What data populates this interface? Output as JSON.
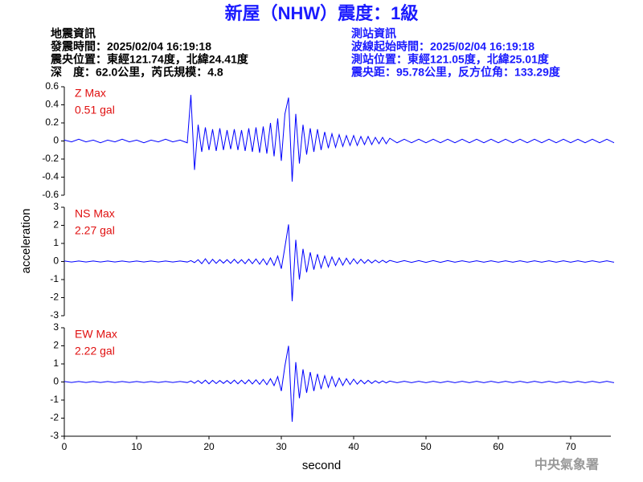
{
  "header": {
    "title": "新屋（NHW）震度：1級",
    "left": [
      "地震資訊",
      "發震時間：2025/02/04 16:19:18",
      "震央位置：東經121.74度，北緯24.41度",
      "深　度：62.0公里，芮氏規模：4.8"
    ],
    "right": [
      "測站資訊",
      "波線起始時間：2025/02/04 16:19:18",
      "測站位置：東經121.05度，北緯25.01度",
      "震央距：95.78公里，反方位角：133.29度"
    ]
  },
  "credit": "中央氣象署",
  "chart_data": {
    "type": "line",
    "xlabel": "second",
    "ylabel": "acceleration",
    "xlim": [
      0,
      76
    ],
    "xticks": [
      0,
      10,
      20,
      30,
      40,
      50,
      60,
      70
    ],
    "x": [
      0,
      1,
      2,
      3,
      4,
      5,
      6,
      7,
      8,
      9,
      10,
      11,
      12,
      13,
      14,
      15,
      16,
      17,
      17.5,
      18,
      18.5,
      19,
      19.5,
      20,
      20.5,
      21,
      21.5,
      22,
      22.5,
      23,
      23.5,
      24,
      24.5,
      25,
      25.5,
      26,
      26.5,
      27,
      27.5,
      28,
      28.5,
      29,
      29.5,
      30,
      30.5,
      31,
      31.5,
      32,
      32.5,
      33,
      33.5,
      34,
      34.5,
      35,
      35.5,
      36,
      36.5,
      37,
      37.5,
      38,
      38.5,
      39,
      39.5,
      40,
      40.5,
      41,
      41.5,
      42,
      42.5,
      43,
      43.5,
      44,
      44.5,
      45,
      46,
      47,
      48,
      49,
      50,
      51,
      52,
      53,
      54,
      55,
      56,
      57,
      58,
      59,
      60,
      61,
      62,
      63,
      64,
      65,
      66,
      67,
      68,
      69,
      70,
      71,
      72,
      73,
      74,
      75,
      76
    ],
    "panels": [
      {
        "name": "Z Max",
        "max_label": "0.51 gal",
        "color": "#0000ff",
        "ylim": [
          -0.6,
          0.6
        ],
        "yticks": [
          -0.6,
          -0.4,
          -0.2,
          0,
          0.2,
          0.4,
          0.6
        ],
        "values": [
          0.01,
          -0.01,
          0.02,
          -0.01,
          0.01,
          -0.02,
          0.01,
          -0.01,
          0.02,
          -0.01,
          0.01,
          -0.02,
          0.01,
          -0.01,
          0.02,
          -0.01,
          0.01,
          -0.02,
          0.51,
          -0.32,
          0.18,
          -0.12,
          0.15,
          -0.1,
          0.13,
          -0.11,
          0.14,
          -0.1,
          0.12,
          -0.09,
          0.13,
          -0.1,
          0.12,
          -0.11,
          0.14,
          -0.12,
          0.15,
          -0.13,
          0.16,
          -0.14,
          0.2,
          -0.17,
          0.25,
          -0.22,
          0.3,
          0.48,
          -0.45,
          0.3,
          -0.25,
          0.18,
          -0.15,
          0.14,
          -0.12,
          0.13,
          -0.1,
          0.1,
          -0.08,
          0.08,
          -0.07,
          0.07,
          -0.06,
          0.06,
          -0.05,
          0.06,
          -0.05,
          0.05,
          -0.04,
          0.05,
          -0.04,
          0.04,
          -0.03,
          0.04,
          -0.03,
          0.03,
          -0.02,
          0.02,
          -0.02,
          0.02,
          -0.02,
          0.02,
          -0.02,
          0.02,
          -0.02,
          0.02,
          -0.02,
          0.02,
          -0.02,
          0.02,
          -0.02,
          0.02,
          -0.02,
          0.02,
          -0.02,
          0.02,
          -0.02,
          0.02,
          -0.02,
          0.02,
          -0.02,
          0.02,
          -0.02,
          0.02,
          -0.02,
          0.02,
          -0.02
        ]
      },
      {
        "name": "NS Max",
        "max_label": "2.27 gal",
        "color": "#0000ff",
        "ylim": [
          -3,
          3
        ],
        "yticks": [
          -3,
          -2,
          -1,
          0,
          1,
          2,
          3
        ],
        "values": [
          0.03,
          -0.03,
          0.03,
          -0.03,
          0.03,
          -0.03,
          0.03,
          -0.03,
          0.03,
          -0.03,
          0.03,
          -0.03,
          0.03,
          -0.03,
          0.03,
          -0.03,
          0.03,
          -0.03,
          0.05,
          -0.06,
          0.1,
          -0.12,
          0.15,
          -0.13,
          0.12,
          -0.1,
          0.1,
          -0.09,
          0.1,
          -0.1,
          0.12,
          -0.1,
          0.1,
          -0.12,
          0.13,
          -0.12,
          0.14,
          -0.15,
          0.15,
          -0.18,
          0.2,
          -0.22,
          0.3,
          -0.4,
          0.8,
          2.05,
          -2.2,
          1.2,
          -1.0,
          0.7,
          -0.6,
          0.5,
          -0.45,
          0.4,
          -0.35,
          0.3,
          -0.3,
          0.25,
          -0.22,
          0.2,
          -0.2,
          0.18,
          -0.15,
          0.15,
          -0.12,
          0.12,
          -0.1,
          0.1,
          -0.08,
          0.08,
          -0.07,
          0.07,
          -0.06,
          0.06,
          -0.05,
          0.05,
          -0.05,
          0.05,
          -0.05,
          0.05,
          -0.05,
          0.05,
          -0.04,
          0.04,
          -0.04,
          0.04,
          -0.04,
          0.04,
          -0.04,
          0.04,
          -0.04,
          0.04,
          -0.04,
          0.04,
          -0.04,
          0.04,
          -0.04,
          0.04,
          -0.04,
          0.04,
          -0.04,
          0.04,
          -0.04,
          0.04,
          -0.04
        ]
      },
      {
        "name": "EW Max",
        "max_label": "2.22 gal",
        "color": "#0000ff",
        "ylim": [
          -3,
          3
        ],
        "yticks": [
          -3,
          -2,
          -1,
          0,
          1,
          2,
          3
        ],
        "values": [
          0.03,
          -0.03,
          0.03,
          -0.03,
          0.03,
          -0.03,
          0.03,
          -0.03,
          0.03,
          -0.03,
          0.03,
          -0.03,
          0.03,
          -0.03,
          0.03,
          -0.03,
          0.03,
          -0.03,
          0.06,
          -0.07,
          0.08,
          -0.08,
          0.1,
          -0.1,
          0.09,
          -0.09,
          0.08,
          -0.08,
          0.08,
          -0.09,
          0.1,
          -0.1,
          0.1,
          -0.1,
          0.12,
          -0.11,
          0.12,
          -0.13,
          0.14,
          -0.15,
          0.18,
          -0.2,
          0.3,
          -0.5,
          0.9,
          2.0,
          -2.2,
          1.1,
          -0.9,
          0.7,
          -0.6,
          0.55,
          -0.5,
          0.45,
          -0.4,
          0.35,
          -0.3,
          0.3,
          -0.25,
          0.22,
          -0.2,
          0.18,
          -0.15,
          0.15,
          -0.12,
          0.1,
          -0.1,
          0.09,
          -0.08,
          0.07,
          -0.06,
          0.06,
          -0.05,
          0.05,
          -0.04,
          0.04,
          -0.04,
          0.04,
          -0.04,
          0.04,
          -0.04,
          0.04,
          -0.04,
          0.04,
          -0.04,
          0.04,
          -0.04,
          0.04,
          -0.04,
          0.04,
          -0.04,
          0.04,
          -0.04,
          0.04,
          -0.04,
          0.04,
          -0.04,
          0.04,
          -0.04,
          0.04,
          -0.04,
          0.04,
          -0.04,
          0.04,
          -0.04
        ]
      }
    ]
  }
}
